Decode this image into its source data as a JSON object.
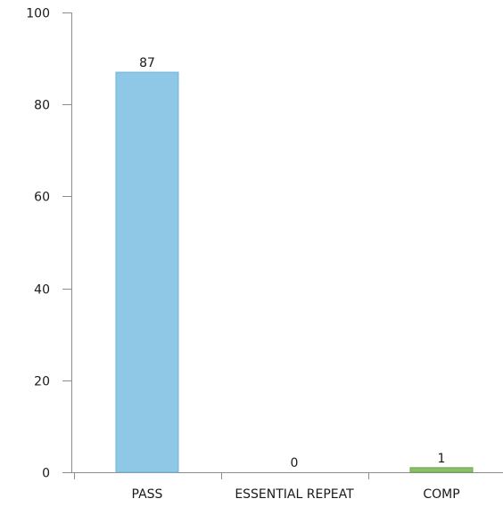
{
  "chart_data": {
    "type": "bar",
    "categories": [
      "PASS",
      "ESSENTIAL REPEAT",
      "COMP"
    ],
    "values": [
      87,
      0,
      1
    ],
    "data_labels": [
      "87",
      "0",
      "1"
    ],
    "title": "",
    "xlabel": "",
    "ylabel": "",
    "ylim": [
      0,
      100
    ],
    "y_ticks": [
      0,
      20,
      40,
      60,
      80,
      100
    ],
    "y_tick_labels": [
      "0",
      "20",
      "40",
      "60",
      "80",
      "100"
    ],
    "grid": false,
    "legend": "none",
    "bar_colors": [
      "#8ec8e6",
      "#8dbf6a",
      "#8dbf6a"
    ],
    "bar_edge_colors": [
      "#6fb3d8",
      "#6aa548",
      "#6aa548"
    ]
  }
}
